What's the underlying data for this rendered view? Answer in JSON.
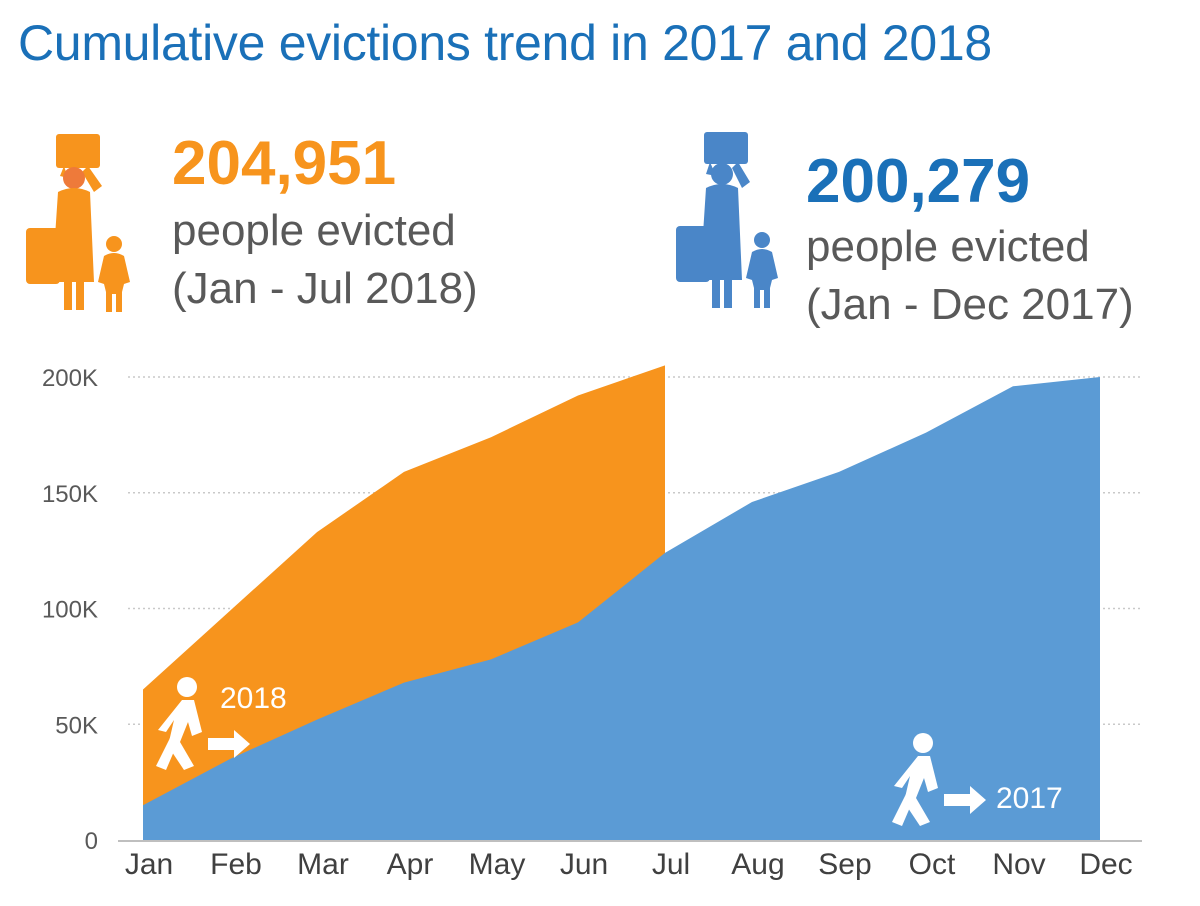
{
  "header": {
    "title": "Cumulative evictions trend in 2017 and 2018"
  },
  "stats": {
    "y2018": {
      "value": "204,951",
      "line1": "people evicted",
      "line2": "(Jan - Jul 2018)",
      "color": "#f7941d",
      "icon": "evicted-family-icon"
    },
    "y2017": {
      "value": "200,279",
      "line1": "people evicted",
      "line2": "(Jan - Dec 2017)",
      "color": "#1a70b8",
      "icon": "evicted-family-icon"
    }
  },
  "chart_data": {
    "type": "area",
    "title": "",
    "xlabel": "",
    "ylabel": "",
    "categories": [
      "Jan",
      "Feb",
      "Mar",
      "Apr",
      "May",
      "Jun",
      "Jul",
      "Aug",
      "Sep",
      "Oct",
      "Nov",
      "Dec"
    ],
    "yticks": [
      {
        "value": 0,
        "label": "0"
      },
      {
        "value": 50000,
        "label": "50K"
      },
      {
        "value": 100000,
        "label": "100K"
      },
      {
        "value": 150000,
        "label": "150K"
      },
      {
        "value": 200000,
        "label": "200K"
      }
    ],
    "ylim": [
      0,
      200000
    ],
    "grid": true,
    "series": [
      {
        "name": "2018",
        "color": "#f7941d",
        "values": [
          65000,
          99000,
          133000,
          159000,
          174000,
          192000,
          205000,
          null,
          null,
          null,
          null,
          null
        ]
      },
      {
        "name": "2017",
        "color": "#5b9bd5",
        "values": [
          15000,
          35000,
          52000,
          68000,
          78000,
          94000,
          124000,
          146000,
          159000,
          176000,
          196000,
          200000
        ]
      }
    ],
    "annotations": [
      {
        "text": "2018",
        "icon": "walking-person-icon",
        "series": "2018"
      },
      {
        "text": "2017",
        "icon": "walking-person-icon",
        "series": "2017"
      }
    ]
  }
}
